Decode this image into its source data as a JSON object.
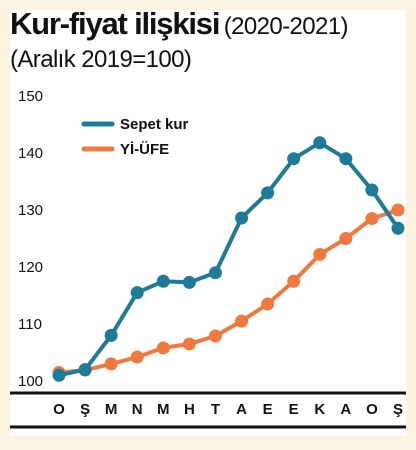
{
  "chart_data": {
    "type": "line",
    "title": "Kur-fiyat ilişkisi",
    "title_suffix": "(2020-2021)",
    "subtitle": "(Aralık 2019=100)",
    "categories": [
      "O",
      "Ş",
      "M",
      "N",
      "M",
      "H",
      "T",
      "A",
      "E",
      "E",
      "K",
      "A",
      "O",
      "Ş"
    ],
    "ylim": [
      100,
      150
    ],
    "yticks": [
      "150",
      "140",
      "130",
      "120",
      "110",
      "100"
    ],
    "grid": false,
    "legend_position": "top-left",
    "series": [
      {
        "name": "Sepet kur",
        "color": "#1e7a96",
        "values": [
          101,
          102,
          108,
          115.5,
          117.5,
          117.3,
          119,
          128.6,
          133,
          139,
          141.8,
          139,
          133.5,
          126.8
        ]
      },
      {
        "name": "Yİ-ÜFE",
        "color": "#f07940",
        "values": [
          101.5,
          101.9,
          103,
          104.2,
          105.8,
          106.5,
          107.9,
          110.5,
          113.5,
          117.5,
          122.2,
          125,
          128.5,
          130
        ]
      }
    ]
  }
}
